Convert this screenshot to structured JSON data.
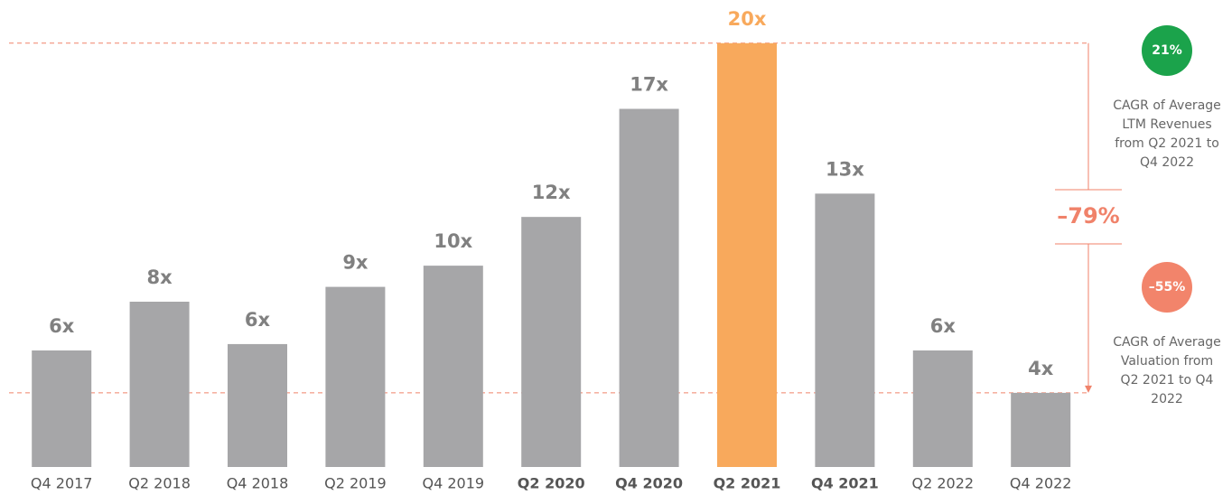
{
  "chart_data": {
    "type": "bar",
    "categories": [
      "Q4 2017",
      "Q2 2018",
      "Q4 2018",
      "Q2 2019",
      "Q4 2019",
      "Q2 2020",
      "Q4 2020",
      "Q2 2021",
      "Q4 2021",
      "Q2 2022",
      "Q4 2022"
    ],
    "values": [
      5.5,
      7.8,
      5.8,
      8.5,
      9.5,
      11.8,
      16.9,
      20,
      12.9,
      5.5,
      3.5
    ],
    "value_labels": [
      "6x",
      "8x",
      "6x",
      "9x",
      "10x",
      "12x",
      "17x",
      "20x",
      "13x",
      "6x",
      "4x"
    ],
    "color": "#a6a6a8",
    "highlight_index": 7,
    "highlight_color": "#f8a95c",
    "bold_categories": [
      5,
      6,
      7,
      8
    ],
    "ylim": [
      0,
      20.8
    ],
    "annotations": {
      "change": "–79%",
      "revenue_badge": "21%",
      "revenue_badge_color": "#1ba34b",
      "revenue_text": [
        "CAGR of Average",
        "LTM Revenues",
        "from Q2 2021 to",
        "Q4 2022"
      ],
      "valuation_badge": "–55%",
      "valuation_badge_color": "#f2846b",
      "valuation_text": [
        "CAGR of Average",
        "Valuation from",
        "Q2 2021 to Q4",
        "2022"
      ]
    }
  }
}
